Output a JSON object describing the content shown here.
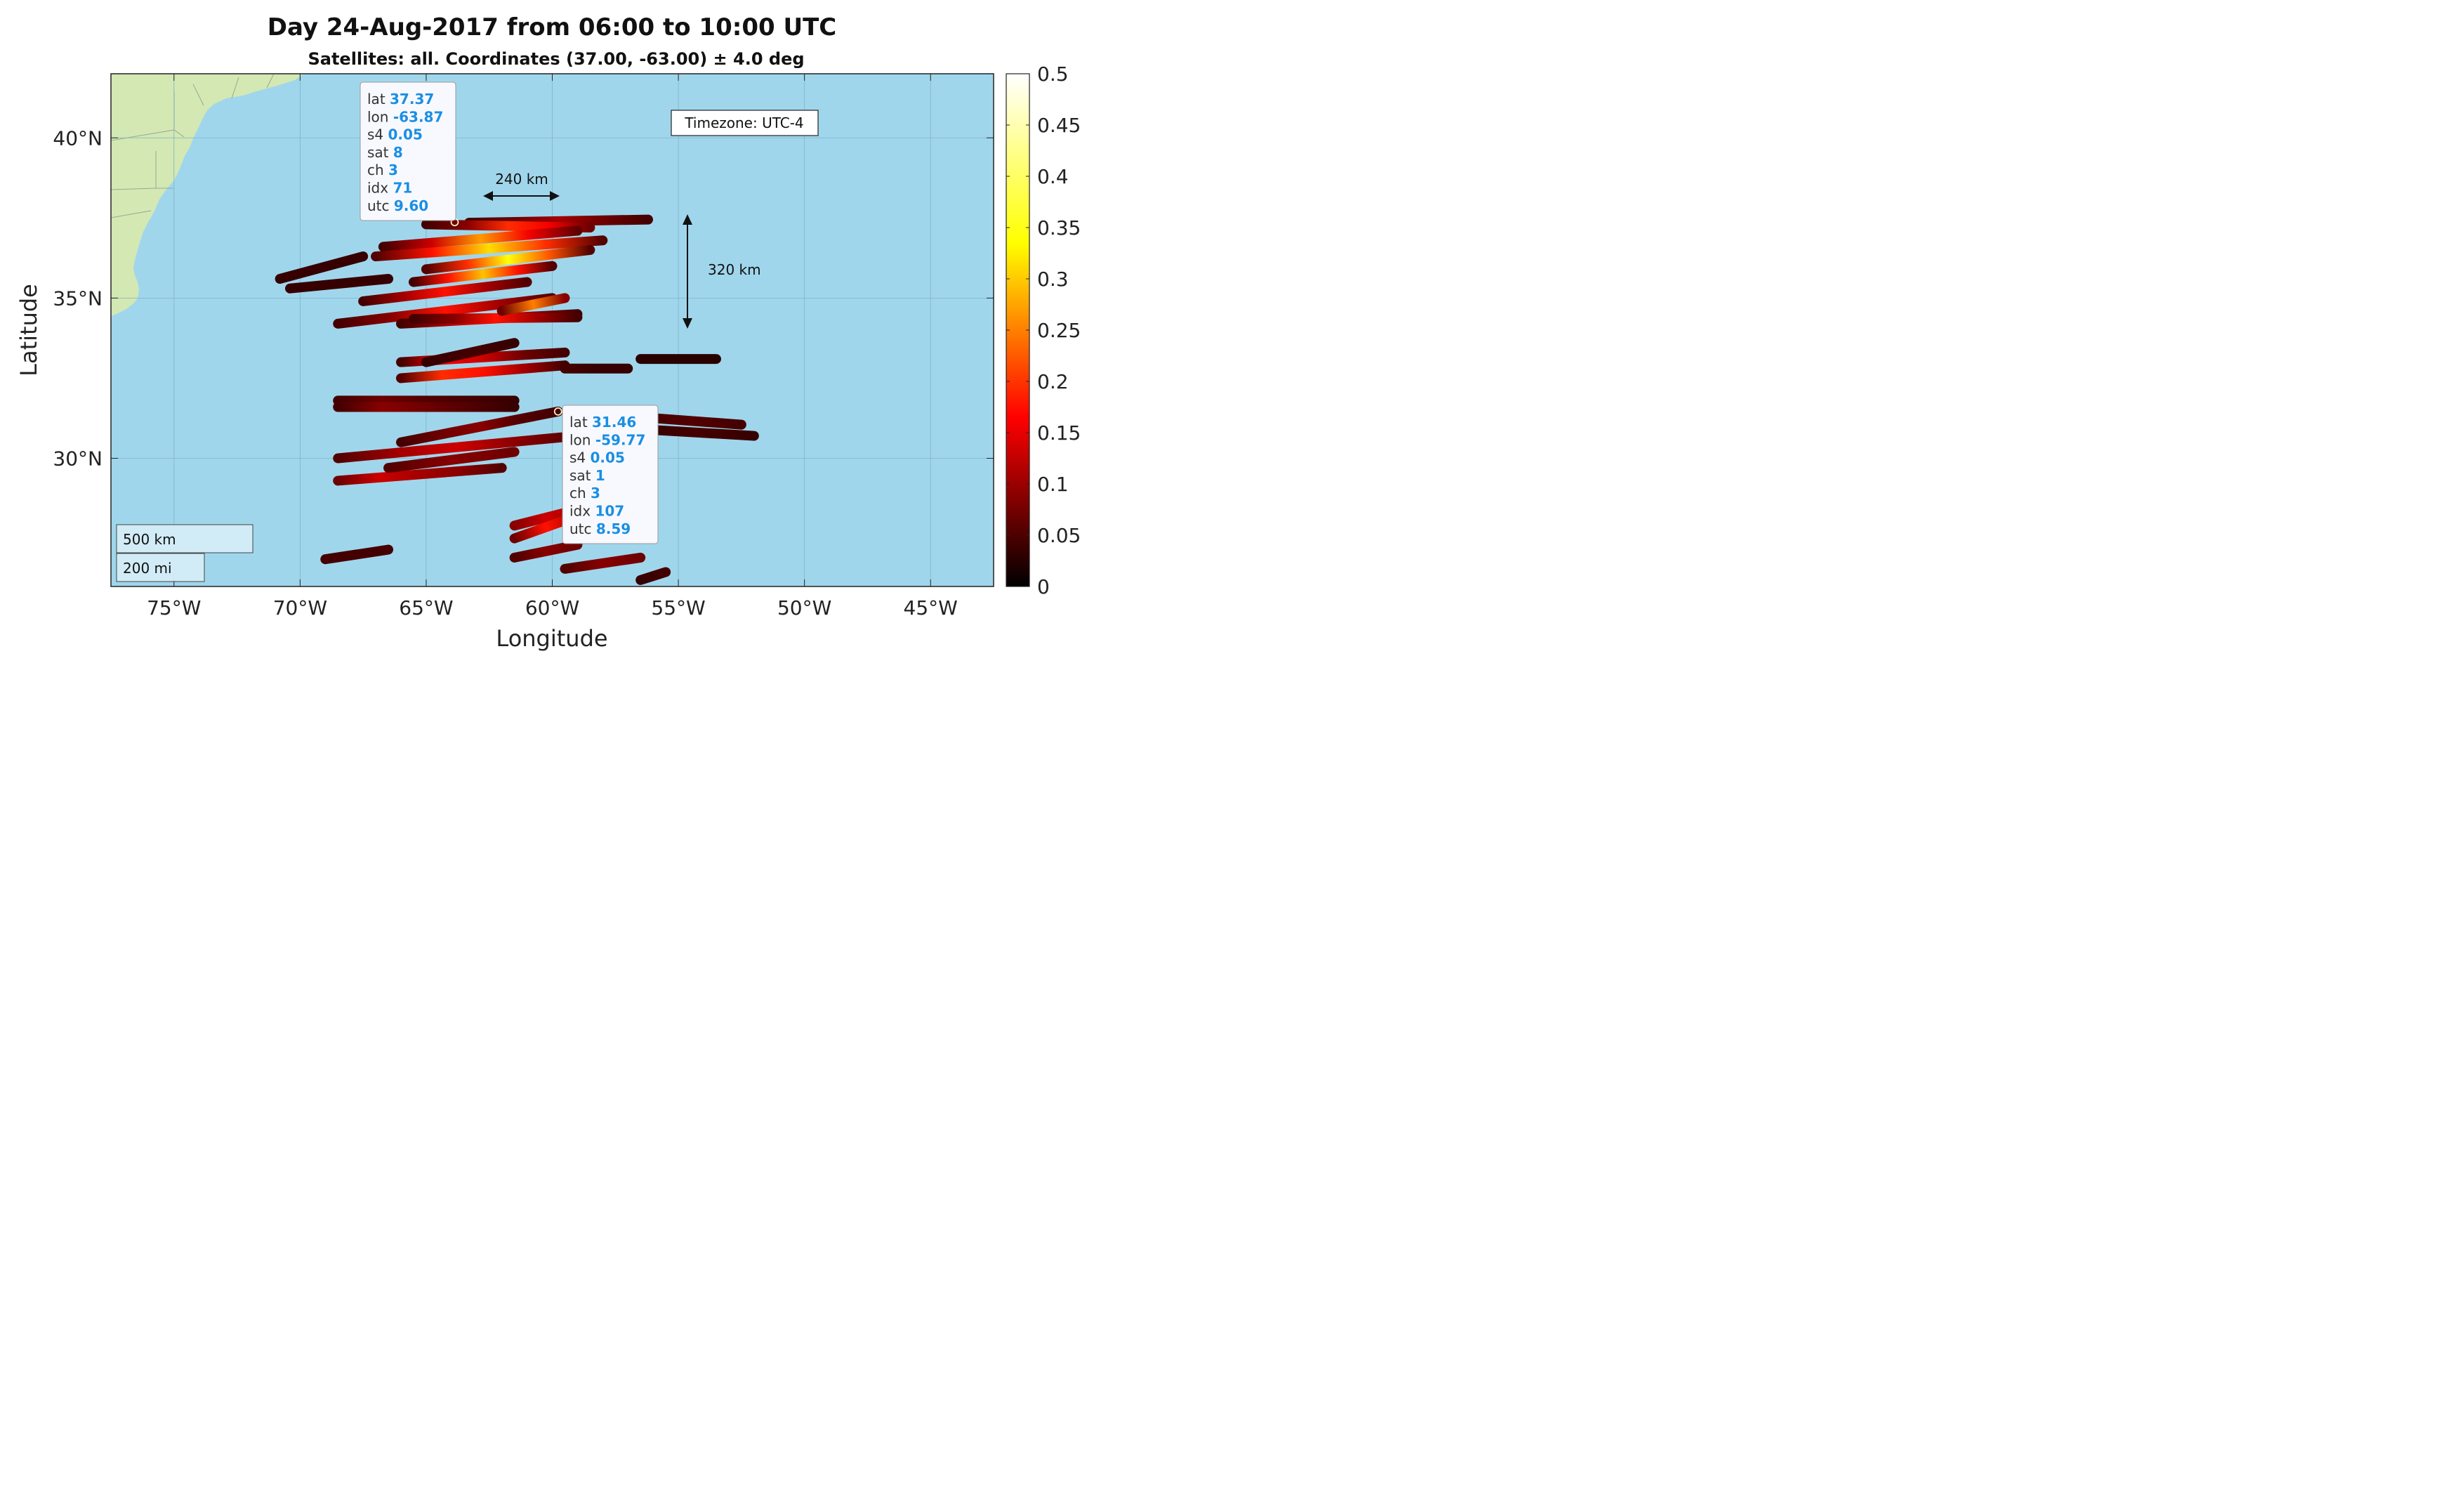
{
  "title": "Day 24-Aug-2017 from 06:00 to 10:00 UTC",
  "subtitle": "Satellites: all. Coordinates (37.00, -63.00) ± 4.0 deg",
  "colors": {
    "ocean": "#a0d6ec",
    "land": "#d3e8b3",
    "grid": "#7fb3c9",
    "frame": "#222222",
    "tip_value": "#1a8fe3"
  },
  "chart_data": {
    "type": "scatter",
    "projection": "map",
    "xlabel": "Longitude",
    "ylabel": "Latitude",
    "xlim": [
      -77.5,
      -42.5
    ],
    "ylim": [
      26.0,
      42.0
    ],
    "x_ticks": [
      -75,
      -70,
      -65,
      -60,
      -55,
      -50,
      -45
    ],
    "x_tick_labels": [
      "75°W",
      "70°W",
      "65°W",
      "60°W",
      "55°W",
      "50°W",
      "45°W"
    ],
    "y_ticks": [
      30,
      35,
      40
    ],
    "y_tick_labels": [
      "30°N",
      "35°N",
      "40°N"
    ],
    "grid": true,
    "colorbar": {
      "colormap": "hot",
      "range": [
        0,
        0.5
      ],
      "ticks": [
        0,
        0.05,
        0.1,
        0.15,
        0.2,
        0.25,
        0.3,
        0.35,
        0.4,
        0.45,
        0.5
      ],
      "tick_labels": [
        "0",
        "0.05",
        "0.1",
        "0.15",
        "0.2",
        "0.25",
        "0.3",
        "0.35",
        "0.4",
        "0.45",
        "0.5"
      ]
    },
    "tracks": [
      {
        "lon": [
          -63.3,
          -56.2
        ],
        "lat": [
          37.35,
          37.45
        ],
        "s4": [
          0.05,
          0.08,
          0.12,
          0.08,
          0.05
        ]
      },
      {
        "lon": [
          -65.0,
          -58.5
        ],
        "lat": [
          37.3,
          37.2
        ],
        "s4": [
          0.05,
          0.1,
          0.22,
          0.18,
          0.08
        ]
      },
      {
        "lon": [
          -66.7,
          -59.0
        ],
        "lat": [
          36.6,
          37.1
        ],
        "s4": [
          0.05,
          0.15,
          0.3,
          0.18,
          0.07
        ]
      },
      {
        "lon": [
          -67.0,
          -58.0
        ],
        "lat": [
          36.3,
          36.8
        ],
        "s4": [
          0.06,
          0.2,
          0.35,
          0.22,
          0.06
        ]
      },
      {
        "lon": [
          -65.0,
          -58.5
        ],
        "lat": [
          35.9,
          36.5
        ],
        "s4": [
          0.06,
          0.22,
          0.38,
          0.25,
          0.06
        ]
      },
      {
        "lon": [
          -65.5,
          -60.0
        ],
        "lat": [
          35.5,
          36.0
        ],
        "s4": [
          0.05,
          0.2,
          0.33,
          0.2,
          0.06
        ]
      },
      {
        "lon": [
          -70.8,
          -67.5
        ],
        "lat": [
          35.6,
          36.3
        ],
        "s4": [
          0.04,
          0.04,
          0.04
        ]
      },
      {
        "lon": [
          -70.4,
          -66.5
        ],
        "lat": [
          35.3,
          35.6
        ],
        "s4": [
          0.04,
          0.04,
          0.04
        ]
      },
      {
        "lon": [
          -67.5,
          -61.0
        ],
        "lat": [
          34.9,
          35.5
        ],
        "s4": [
          0.05,
          0.12,
          0.2,
          0.12,
          0.06
        ]
      },
      {
        "lon": [
          -68.5,
          -60.0
        ],
        "lat": [
          34.2,
          35.0
        ],
        "s4": [
          0.05,
          0.1,
          0.2,
          0.12,
          0.06
        ]
      },
      {
        "lon": [
          -66.0,
          -59.0
        ],
        "lat": [
          34.2,
          34.5
        ],
        "s4": [
          0.05,
          0.12,
          0.18,
          0.1,
          0.05
        ]
      },
      {
        "lon": [
          -65.5,
          -59.0
        ],
        "lat": [
          34.35,
          34.4
        ],
        "s4": [
          0.05,
          0.1,
          0.2,
          0.12,
          0.05
        ]
      },
      {
        "lon": [
          -62.0,
          -59.5
        ],
        "lat": [
          34.6,
          35.0
        ],
        "s4": [
          0.08,
          0.28,
          0.1
        ]
      },
      {
        "lon": [
          -66.0,
          -59.5
        ],
        "lat": [
          33.0,
          33.3
        ],
        "s4": [
          0.05,
          0.18,
          0.15,
          0.08,
          0.05
        ]
      },
      {
        "lon": [
          -65.0,
          -61.5
        ],
        "lat": [
          33.0,
          33.6
        ],
        "s4": [
          0.04,
          0.05,
          0.04
        ]
      },
      {
        "lon": [
          -66.0,
          -59.5
        ],
        "lat": [
          32.5,
          32.9
        ],
        "s4": [
          0.06,
          0.22,
          0.2,
          0.12,
          0.05
        ]
      },
      {
        "lon": [
          -59.5,
          -57.0
        ],
        "lat": [
          32.8,
          32.8
        ],
        "s4": [
          0.05,
          0.04,
          0.04
        ]
      },
      {
        "lon": [
          -56.5,
          -53.5
        ],
        "lat": [
          33.1,
          33.1
        ],
        "s4": [
          0.03,
          0.03,
          0.03
        ]
      },
      {
        "lon": [
          -68.5,
          -61.5
        ],
        "lat": [
          31.8,
          31.8
        ],
        "s4": [
          0.05,
          0.08,
          0.06,
          0.05,
          0.04
        ]
      },
      {
        "lon": [
          -68.5,
          -61.5
        ],
        "lat": [
          31.6,
          31.6
        ],
        "s4": [
          0.05,
          0.1,
          0.08,
          0.06,
          0.04
        ]
      },
      {
        "lon": [
          -66.0,
          -59.77
        ],
        "lat": [
          30.5,
          31.46
        ],
        "s4": [
          0.05,
          0.08,
          0.1,
          0.06,
          0.05
        ]
      },
      {
        "lon": [
          -58.5,
          -52.5
        ],
        "lat": [
          31.4,
          31.05
        ],
        "s4": [
          0.04,
          0.05,
          0.06,
          0.05
        ]
      },
      {
        "lon": [
          -58.5,
          -52.0
        ],
        "lat": [
          31.0,
          30.7
        ],
        "s4": [
          0.04,
          0.04,
          0.05,
          0.04
        ]
      },
      {
        "lon": [
          -68.5,
          -59.0
        ],
        "lat": [
          30.0,
          30.7
        ],
        "s4": [
          0.06,
          0.12,
          0.15,
          0.1,
          0.06
        ]
      },
      {
        "lon": [
          -68.5,
          -62.0
        ],
        "lat": [
          29.3,
          29.7
        ],
        "s4": [
          0.08,
          0.15,
          0.12,
          0.1,
          0.06
        ]
      },
      {
        "lon": [
          -66.5,
          -61.5
        ],
        "lat": [
          29.7,
          30.2
        ],
        "s4": [
          0.06,
          0.1,
          0.08
        ]
      },
      {
        "lon": [
          -69.0,
          -66.5
        ],
        "lat": [
          26.85,
          27.15
        ],
        "s4": [
          0.05,
          0.05,
          0.05
        ]
      },
      {
        "lon": [
          -61.5,
          -59.0
        ],
        "lat": [
          27.9,
          28.4
        ],
        "s4": [
          0.1,
          0.15,
          0.12
        ]
      },
      {
        "lon": [
          -61.5,
          -59.0
        ],
        "lat": [
          27.5,
          28.2
        ],
        "s4": [
          0.08,
          0.2,
          0.12
        ]
      },
      {
        "lon": [
          -61.5,
          -59.0
        ],
        "lat": [
          26.9,
          27.3
        ],
        "s4": [
          0.06,
          0.1,
          0.08
        ]
      },
      {
        "lon": [
          -59.5,
          -56.5
        ],
        "lat": [
          26.55,
          26.9
        ],
        "s4": [
          0.06,
          0.1,
          0.08
        ]
      },
      {
        "lon": [
          -56.5,
          -55.5
        ],
        "lat": [
          26.2,
          26.45
        ],
        "s4": [
          0.04,
          0.05
        ]
      }
    ]
  },
  "tooltips": [
    {
      "marker": {
        "lon": -63.87,
        "lat": 37.37
      },
      "anchor": "top-left",
      "rows": [
        {
          "key": "lat",
          "value": "37.37"
        },
        {
          "key": "lon",
          "value": "-63.87"
        },
        {
          "key": "s4",
          "value": "0.05"
        },
        {
          "key": "sat",
          "value": "8"
        },
        {
          "key": "ch",
          "value": "3"
        },
        {
          "key": "idx",
          "value": "71"
        },
        {
          "key": "utc",
          "value": "9.60"
        }
      ]
    },
    {
      "marker": {
        "lon": -59.77,
        "lat": 31.46
      },
      "anchor": "bottom-right",
      "rows": [
        {
          "key": "lat",
          "value": "31.46"
        },
        {
          "key": "lon",
          "value": "-59.77"
        },
        {
          "key": "s4",
          "value": "0.05"
        },
        {
          "key": "sat",
          "value": "1"
        },
        {
          "key": "ch",
          "value": "3"
        },
        {
          "key": "idx",
          "value": "107"
        },
        {
          "key": "utc",
          "value": "8.59"
        }
      ]
    }
  ],
  "annotations": {
    "timezone": "Timezone: UTC-4",
    "horizontal_distance": "240 km",
    "vertical_distance": "320 km",
    "scale_km": "500 km",
    "scale_mi": "200 mi"
  }
}
